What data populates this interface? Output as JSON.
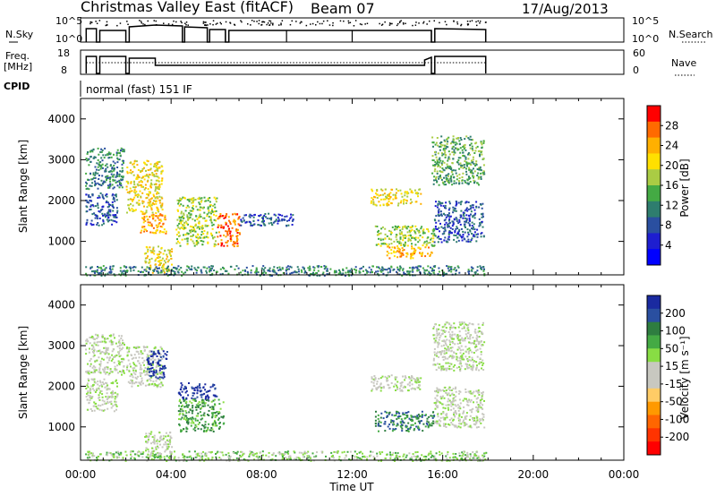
{
  "header": {
    "title": "Christmas Valley East (fitACF)",
    "beam": "Beam 07",
    "date": "17/Aug/2013"
  },
  "strips": {
    "nsky_label": "N.Sky",
    "nsearch_label": "N.Search",
    "scale_top": "10^5",
    "scale_bottom": "10^0",
    "freq_label_1": "Freq.",
    "freq_label_2": "[MHz]",
    "freq_ticks": [
      "18",
      "8"
    ],
    "nave_label": "Nave",
    "nave_ticks": [
      "60",
      "0"
    ],
    "cpid_label": "CPID",
    "cpid_text": "normal (fast) 151 IF"
  },
  "chart_data": [
    {
      "type": "heatmap",
      "name": "power",
      "xlabel": "Time UT",
      "ylabel": "Slant Range [km]",
      "xlim": [
        0,
        24
      ],
      "ylim": [
        180,
        4500
      ],
      "x_ticks": [
        "00:00",
        "04:00",
        "08:00",
        "12:00",
        "16:00",
        "20:00",
        "00:00"
      ],
      "y_ticks": [
        1000,
        2000,
        3000,
        4000
      ],
      "colorbar": {
        "label": "Power [dB]",
        "ticks": [
          "28",
          "24",
          "20",
          "16",
          "12",
          "8",
          "4"
        ],
        "colors": [
          "#ff0000",
          "#ff6a00",
          "#ffb000",
          "#ffe000",
          "#aacc44",
          "#44aa44",
          "#2e7d6e",
          "#2a4fa0",
          "#1e1ed0",
          "#0000ff"
        ]
      },
      "regions": [
        {
          "t0": 0.2,
          "t1": 1.9,
          "r0": 2300,
          "r1": 3300,
          "level": 6
        },
        {
          "t0": 0.2,
          "t1": 1.6,
          "r0": 1400,
          "r1": 2200,
          "level": 7
        },
        {
          "t0": 2.0,
          "t1": 3.6,
          "r0": 1700,
          "r1": 3000,
          "level": 3
        },
        {
          "t0": 2.6,
          "t1": 3.8,
          "r0": 1200,
          "r1": 1700,
          "level": 2
        },
        {
          "t0": 2.8,
          "t1": 4.0,
          "r0": 250,
          "r1": 900,
          "level": 3
        },
        {
          "t0": 4.2,
          "t1": 6.0,
          "r0": 900,
          "r1": 2100,
          "level": 4
        },
        {
          "t0": 6.0,
          "t1": 7.0,
          "r0": 900,
          "r1": 1700,
          "level": 1
        },
        {
          "t0": 7.0,
          "t1": 9.5,
          "r0": 1400,
          "r1": 1700,
          "level": 7
        },
        {
          "t0": 12.8,
          "t1": 15.0,
          "r0": 1900,
          "r1": 2300,
          "level": 3
        },
        {
          "t0": 13.0,
          "t1": 15.6,
          "r0": 900,
          "r1": 1400,
          "level": 4
        },
        {
          "t0": 13.5,
          "t1": 15.5,
          "r0": 600,
          "r1": 900,
          "level": 2
        },
        {
          "t0": 15.5,
          "t1": 17.8,
          "r0": 2400,
          "r1": 3600,
          "level": 5
        },
        {
          "t0": 15.6,
          "t1": 17.8,
          "r0": 1000,
          "r1": 2000,
          "level": 7
        },
        {
          "t0": 0.2,
          "t1": 17.9,
          "r0": 180,
          "r1": 420,
          "level": 6
        }
      ]
    },
    {
      "type": "heatmap",
      "name": "velocity",
      "xlabel": "Time UT",
      "ylabel": "Slant Range [km]",
      "xlim": [
        0,
        24
      ],
      "ylim": [
        180,
        4500
      ],
      "x_ticks": [
        "00:00",
        "04:00",
        "08:00",
        "12:00",
        "16:00",
        "20:00",
        "00:00"
      ],
      "y_ticks": [
        1000,
        2000,
        3000,
        4000
      ],
      "colorbar": {
        "label": "Velocity [m s⁻¹]",
        "ticks": [
          "200",
          "100",
          "50",
          "15",
          "-15",
          "-50",
          "-100",
          "-200"
        ],
        "colors": [
          "#1a2aa0",
          "#2a4fa0",
          "#2e7d40",
          "#44aa44",
          "#88dd44",
          "#c8c8c0",
          "#c8c8c0",
          "#ffcc66",
          "#ff9900",
          "#ff6600",
          "#ff3300",
          "#ff0000"
        ]
      },
      "regions": [
        {
          "t0": 0.2,
          "t1": 1.9,
          "r0": 2300,
          "r1": 3300,
          "level": 5
        },
        {
          "t0": 0.2,
          "t1": 1.6,
          "r0": 1400,
          "r1": 2200,
          "level": 5
        },
        {
          "t0": 2.0,
          "t1": 3.6,
          "r0": 2000,
          "r1": 3000,
          "level": 5
        },
        {
          "t0": 2.9,
          "t1": 3.8,
          "r0": 2200,
          "r1": 2900,
          "level": 0
        },
        {
          "t0": 2.8,
          "t1": 4.0,
          "r0": 300,
          "r1": 900,
          "level": 5
        },
        {
          "t0": 4.3,
          "t1": 6.0,
          "r0": 1700,
          "r1": 2100,
          "level": 0
        },
        {
          "t0": 4.3,
          "t1": 6.3,
          "r0": 900,
          "r1": 1700,
          "level": 3
        },
        {
          "t0": 12.8,
          "t1": 15.0,
          "r0": 1900,
          "r1": 2300,
          "level": 5
        },
        {
          "t0": 13.0,
          "t1": 15.6,
          "r0": 900,
          "r1": 1400,
          "level": 2
        },
        {
          "t0": 15.5,
          "t1": 17.8,
          "r0": 2400,
          "r1": 3600,
          "level": 5
        },
        {
          "t0": 15.6,
          "t1": 17.8,
          "r0": 1000,
          "r1": 2000,
          "level": 5
        },
        {
          "t0": 0.2,
          "t1": 17.9,
          "r0": 180,
          "r1": 420,
          "level": 4
        }
      ]
    }
  ]
}
